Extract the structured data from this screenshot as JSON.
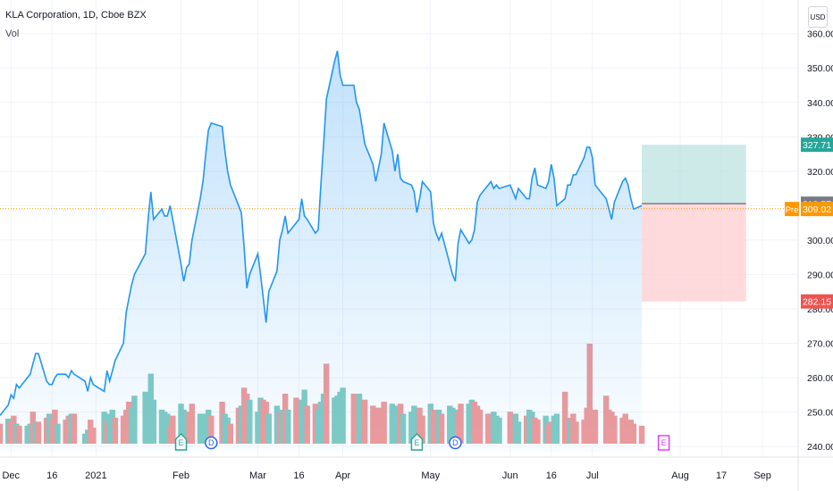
{
  "legend": {
    "title": "KLA Corporation, 1D, Cboe BZX",
    "volume_label": "Vol"
  },
  "currency": "USD",
  "colors": {
    "line": "#2196f3",
    "up_volume": "#80cbc4",
    "down_volume": "#ef9a9a",
    "target_zone": "#b2dfdb",
    "stop_zone": "#ffcdd2",
    "last_price_line": "#ff9800",
    "axis_text": "#131722"
  },
  "price_labels": [
    {
      "value": "327.71",
      "color": "#26a69a"
    },
    {
      "value": "310.57",
      "color": "#787b86"
    },
    {
      "value": "309.12",
      "color": "#2196f3"
    },
    {
      "value": "309.02",
      "color": "#ff9800",
      "prefix": "Pre"
    },
    {
      "value": "282.15",
      "color": "#ef5350"
    }
  ],
  "event_markers": [
    {
      "label": "E",
      "type": "earnings",
      "date": "2021-02-01",
      "color": "#26a69a"
    },
    {
      "label": "D",
      "type": "dividend",
      "date": "2021-02-12",
      "color": "#2962ff"
    },
    {
      "label": "E",
      "type": "earnings",
      "date": "2021-04-28",
      "color": "#26a69a"
    },
    {
      "label": "D",
      "type": "dividend",
      "date": "2021-05-12",
      "color": "#2962ff"
    },
    {
      "label": "E",
      "type": "earnings",
      "date": "2021-07-27",
      "color": "#e040fb"
    }
  ],
  "chart_data": {
    "type": "line",
    "title": "KLA Corporation, 1D, Cboe BZX",
    "x_tick_labels": [
      "Dec",
      "16",
      "2021",
      "Feb",
      "Mar",
      "16",
      "Apr",
      "May",
      "Jun",
      "16",
      "Jul",
      "Aug",
      "17",
      "Sep"
    ],
    "x_tick_dates": [
      "2020-12-01",
      "2020-12-16",
      "2021-01-01",
      "2021-02-01",
      "2021-03-01",
      "2021-03-16",
      "2021-04-01",
      "2021-05-03",
      "2021-06-01",
      "2021-06-16",
      "2021-07-01",
      "2021-08-02",
      "2021-08-17",
      "2021-09-01"
    ],
    "x_range": [
      "2020-11-27",
      "2021-09-14"
    ],
    "y_tick_labels": [
      "240.00",
      "250.00",
      "260.00",
      "270.00",
      "280.00",
      "290.00",
      "300.00",
      "310.00",
      "320.00",
      "330.00",
      "340.00",
      "350.00",
      "360.00"
    ],
    "ylim": [
      238.2,
      362.0
    ],
    "series": [
      {
        "values": [
          [
            "2020-11-27",
            249
          ],
          [
            "2020-11-30",
            252
          ],
          [
            "2020-12-01",
            255
          ],
          [
            "2020-12-02",
            254
          ],
          [
            "2020-12-03",
            258
          ],
          [
            "2020-12-04",
            257
          ],
          [
            "2020-12-07",
            260
          ],
          [
            "2020-12-08",
            261
          ],
          [
            "2020-12-09",
            264
          ],
          [
            "2020-12-10",
            267
          ],
          [
            "2020-12-11",
            267
          ],
          [
            "2020-12-14",
            259
          ],
          [
            "2020-12-15",
            258
          ],
          [
            "2020-12-16",
            258
          ],
          [
            "2020-12-17",
            260
          ],
          [
            "2020-12-18",
            261
          ],
          [
            "2020-12-21",
            261
          ],
          [
            "2020-12-22",
            260
          ],
          [
            "2020-12-23",
            262
          ],
          [
            "2020-12-24",
            261
          ],
          [
            "2020-12-28",
            259
          ],
          [
            "2020-12-29",
            256
          ],
          [
            "2020-12-30",
            260
          ],
          [
            "2020-12-31",
            258
          ],
          [
            "2021-01-04",
            256
          ],
          [
            "2021-01-05",
            262
          ],
          [
            "2021-01-06",
            259
          ],
          [
            "2021-01-07",
            262
          ],
          [
            "2021-01-08",
            265
          ],
          [
            "2021-01-11",
            270
          ],
          [
            "2021-01-12",
            279
          ],
          [
            "2021-01-13",
            283
          ],
          [
            "2021-01-14",
            287
          ],
          [
            "2021-01-15",
            290
          ],
          [
            "2021-01-19",
            296
          ],
          [
            "2021-01-20",
            306
          ],
          [
            "2021-01-21",
            314
          ],
          [
            "2021-01-22",
            306
          ],
          [
            "2021-01-25",
            309
          ],
          [
            "2021-01-26",
            307
          ],
          [
            "2021-01-27",
            307
          ],
          [
            "2021-01-28",
            310
          ],
          [
            "2021-01-29",
            306
          ],
          [
            "2021-02-01",
            293
          ],
          [
            "2021-02-02",
            288
          ],
          [
            "2021-02-03",
            292
          ],
          [
            "2021-02-04",
            293
          ],
          [
            "2021-02-05",
            300
          ],
          [
            "2021-02-08",
            312
          ],
          [
            "2021-02-09",
            317
          ],
          [
            "2021-02-10",
            325
          ],
          [
            "2021-02-11",
            332
          ],
          [
            "2021-02-12",
            334
          ],
          [
            "2021-02-16",
            333
          ],
          [
            "2021-02-17",
            326
          ],
          [
            "2021-02-18",
            320
          ],
          [
            "2021-02-19",
            316
          ],
          [
            "2021-02-22",
            310
          ],
          [
            "2021-02-23",
            308
          ],
          [
            "2021-02-24",
            298
          ],
          [
            "2021-02-25",
            286
          ],
          [
            "2021-02-26",
            290
          ],
          [
            "2021-03-01",
            296
          ],
          [
            "2021-03-02",
            290
          ],
          [
            "2021-03-03",
            283
          ],
          [
            "2021-03-04",
            276
          ],
          [
            "2021-03-05",
            285
          ],
          [
            "2021-03-08",
            291
          ],
          [
            "2021-03-09",
            300
          ],
          [
            "2021-03-10",
            303
          ],
          [
            "2021-03-11",
            307
          ],
          [
            "2021-03-12",
            302
          ],
          [
            "2021-03-15",
            305
          ],
          [
            "2021-03-16",
            306
          ],
          [
            "2021-03-17",
            312
          ],
          [
            "2021-03-18",
            307
          ],
          [
            "2021-03-19",
            306
          ],
          [
            "2021-03-22",
            302
          ],
          [
            "2021-03-23",
            303
          ],
          [
            "2021-03-24",
            316
          ],
          [
            "2021-03-25",
            328
          ],
          [
            "2021-03-26",
            341
          ],
          [
            "2021-03-29",
            352
          ],
          [
            "2021-03-30",
            355
          ],
          [
            "2021-03-31",
            348
          ],
          [
            "2021-04-01",
            345
          ],
          [
            "2021-04-05",
            345
          ],
          [
            "2021-04-06",
            340
          ],
          [
            "2021-04-07",
            338
          ],
          [
            "2021-04-08",
            333
          ],
          [
            "2021-04-09",
            328
          ],
          [
            "2021-04-12",
            322
          ],
          [
            "2021-04-13",
            317
          ],
          [
            "2021-04-14",
            321
          ],
          [
            "2021-04-15",
            325
          ],
          [
            "2021-04-16",
            334
          ],
          [
            "2021-04-19",
            326
          ],
          [
            "2021-04-20",
            320
          ],
          [
            "2021-04-21",
            325
          ],
          [
            "2021-04-22",
            318
          ],
          [
            "2021-04-23",
            317
          ],
          [
            "2021-04-26",
            316
          ],
          [
            "2021-04-27",
            314
          ],
          [
            "2021-04-28",
            308
          ],
          [
            "2021-04-29",
            312
          ],
          [
            "2021-04-30",
            317
          ],
          [
            "2021-05-03",
            314
          ],
          [
            "2021-05-04",
            305
          ],
          [
            "2021-05-05",
            302
          ],
          [
            "2021-05-06",
            300
          ],
          [
            "2021-05-07",
            302
          ],
          [
            "2021-05-10",
            293
          ],
          [
            "2021-05-11",
            290
          ],
          [
            "2021-05-12",
            288
          ],
          [
            "2021-05-13",
            299
          ],
          [
            "2021-05-14",
            303
          ],
          [
            "2021-05-17",
            299
          ],
          [
            "2021-05-18",
            300
          ],
          [
            "2021-05-19",
            303
          ],
          [
            "2021-05-20",
            311
          ],
          [
            "2021-05-21",
            313
          ],
          [
            "2021-05-24",
            316
          ],
          [
            "2021-05-25",
            317
          ],
          [
            "2021-05-26",
            315
          ],
          [
            "2021-05-27",
            316
          ],
          [
            "2021-05-28",
            315
          ],
          [
            "2021-06-01",
            316
          ],
          [
            "2021-06-02",
            314
          ],
          [
            "2021-06-03",
            312
          ],
          [
            "2021-06-04",
            315
          ],
          [
            "2021-06-07",
            312
          ],
          [
            "2021-06-08",
            312
          ],
          [
            "2021-06-09",
            318
          ],
          [
            "2021-06-10",
            321
          ],
          [
            "2021-06-11",
            316
          ],
          [
            "2021-06-14",
            315
          ],
          [
            "2021-06-15",
            317
          ],
          [
            "2021-06-16",
            322
          ],
          [
            "2021-06-17",
            318
          ],
          [
            "2021-06-18",
            310
          ],
          [
            "2021-06-21",
            312
          ],
          [
            "2021-06-22",
            316
          ],
          [
            "2021-06-23",
            316
          ],
          [
            "2021-06-24",
            319
          ],
          [
            "2021-06-25",
            319
          ],
          [
            "2021-06-28",
            324
          ],
          [
            "2021-06-29",
            327
          ],
          [
            "2021-06-30",
            327
          ],
          [
            "2021-07-01",
            324
          ],
          [
            "2021-07-02",
            316
          ],
          [
            "2021-07-06",
            312
          ],
          [
            "2021-07-07",
            309
          ],
          [
            "2021-07-08",
            306
          ],
          [
            "2021-07-09",
            311
          ],
          [
            "2021-07-12",
            317
          ],
          [
            "2021-07-13",
            318
          ],
          [
            "2021-07-14",
            316
          ],
          [
            "2021-07-15",
            312
          ],
          [
            "2021-07-16",
            309
          ],
          [
            "2021-07-19",
            310
          ]
        ]
      },
      {
        "name": "Vol",
        "type": "bar",
        "colors_key": "up_volume / down_volume",
        "values": [
          0.2,
          0.25,
          0.22,
          0.28,
          0.2,
          0.18,
          0.18,
          0.2,
          0.32,
          0.22,
          0.22,
          0.26,
          0.3,
          0.25,
          0.34,
          0.2,
          0.24,
          0.28,
          0.3,
          0.3,
          0.1,
          0.14,
          0.24,
          0.16,
          0.32,
          0.22,
          0.3,
          0.34,
          0.26,
          0.28,
          0.34,
          0.42,
          0.36,
          0.48,
          0.52,
          0.36,
          0.7,
          0.44,
          0.34,
          0.32,
          0.3,
          0.18,
          0.28,
          0.4,
          0.34,
          0.28,
          0.32,
          0.4,
          0.3,
          0.3,
          0.24,
          0.34,
          0.28,
          0.42,
          0.3,
          0.26,
          0.2,
          0.36,
          0.38,
          0.56,
          0.5,
          0.44,
          0.32,
          0.46,
          0.44,
          0.42,
          0.3,
          0.38,
          0.32,
          0.34,
          0.5,
          0.34,
          0.46,
          0.34,
          0.44,
          0.54,
          0.38,
          0.4,
          0.34,
          0.42,
          0.5,
          0.8,
          0.46,
          0.48,
          0.52,
          0.56,
          0.5,
          0.46,
          0.5,
          0.42,
          0.44,
          0.38,
          0.3,
          0.36,
          0.32,
          0.42,
          0.4,
          0.36,
          0.38,
          0.4,
          0.3,
          0.32,
          0.38,
          0.34,
          0.36,
          0.28,
          0.4,
          0.34,
          0.32,
          0.34,
          0.3,
          0.38,
          0.36,
          0.34,
          0.32,
          0.4,
          0.4,
          0.44,
          0.42,
          0.38,
          0.34,
          0.3,
          0.3,
          0.32,
          0.28,
          0.26,
          0.32,
          0.3,
          0.3,
          0.22,
          0.28,
          0.34,
          0.32,
          0.26,
          0.24,
          0.28,
          0.2,
          0.22,
          0.28,
          0.3,
          0.52,
          0.26,
          0.24,
          0.3,
          0.22,
          0.24,
          0.36,
          1.0,
          0.22,
          0.34,
          0.48,
          0.34,
          0.32,
          0.28,
          0.26,
          0.3,
          0.22,
          0.24,
          0.2,
          0.18
        ],
        "directions": "dudduduududduddudduduudduduudddduuuuuuuuudduuudduuuudduuddudduuudduudududduudduuuduuuudduudddddduuuduuuuddudduduuudduuddddduuudduuduuddudduuddu"
      }
    ],
    "annotations": [
      {
        "type": "long_position",
        "start": "2021-07-19",
        "end": "2021-08-26",
        "entry": 310.57,
        "target": 327.71,
        "stop": 282.15
      },
      {
        "type": "last_price_line",
        "value": 309.12
      }
    ],
    "grid": true,
    "legend_position": "top-left"
  }
}
